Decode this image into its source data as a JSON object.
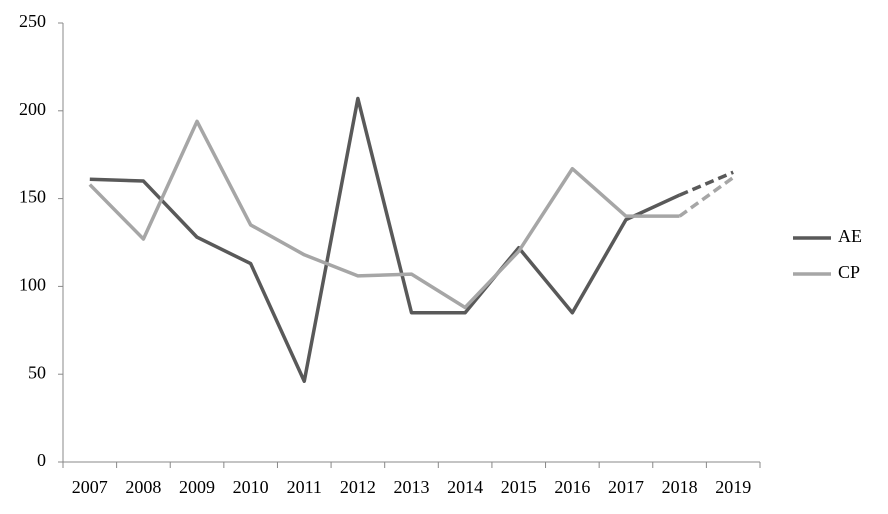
{
  "chart_data": {
    "type": "line",
    "categories": [
      "2007",
      "2008",
      "2009",
      "2010",
      "2011",
      "2012",
      "2013",
      "2014",
      "2015",
      "2016",
      "2017",
      "2018",
      "2019"
    ],
    "series": [
      {
        "name": "AE",
        "color": "#595959",
        "dash_from_index": 11,
        "values": [
          161,
          160,
          128,
          113,
          46,
          207,
          85,
          85,
          122,
          85,
          138,
          152,
          165
        ]
      },
      {
        "name": "CP",
        "color": "#a6a6a6",
        "dash_from_index": 11,
        "values": [
          158,
          127,
          194,
          135,
          118,
          106,
          107,
          88,
          120,
          167,
          140,
          140,
          162
        ]
      }
    ],
    "ylim": [
      0,
      250
    ],
    "yticks": [
      0,
      50,
      100,
      150,
      200,
      250
    ],
    "grid": false,
    "legend": "right"
  }
}
